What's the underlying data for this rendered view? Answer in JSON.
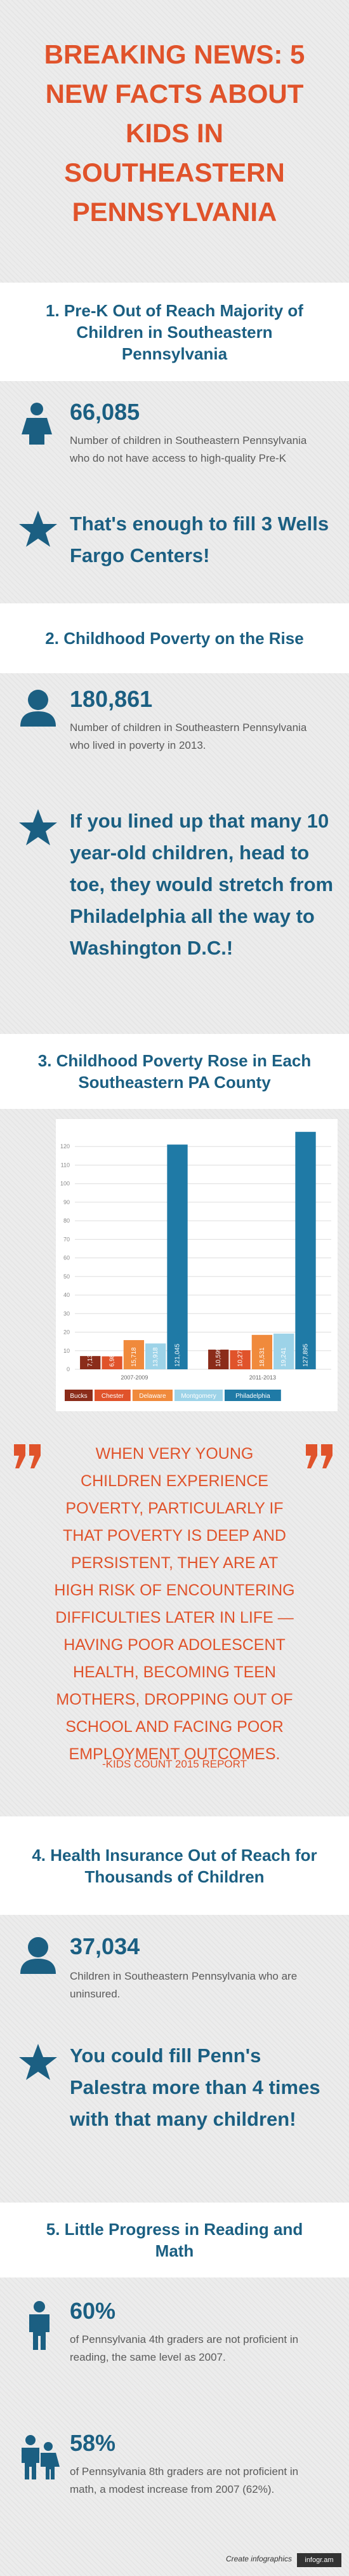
{
  "title": "BREAKING NEWS: 5 NEW FACTS ABOUT KIDS IN SOUTHEASTERN PENNSYLVANIA",
  "sections": [
    {
      "heading": "1. Pre-K Out of Reach Majority of Children in Southeastern Pennsylvania",
      "stat": "66,085",
      "stat_text": "Number of children in Southeastern Pennsylvania who do not have access to high-quality Pre-K",
      "highlight": "That's enough to fill 3 Wells Fargo Centers!"
    },
    {
      "heading": "2. Childhood Poverty on the Rise",
      "stat": "180,861",
      "stat_text": "Number of children in Southeastern Pennsylvania who lived in poverty in 2013.",
      "highlight": "If you lined up that many 10 year-old children, head to toe, they would stretch from Philadelphia all the way to Washington D.C.!"
    },
    {
      "heading": "3. Childhood Poverty Rose in Each Southeastern PA County"
    },
    {
      "heading": "4. Health Insurance Out of Reach for Thousands of Children",
      "stat": "37,034",
      "stat_text": "Children in Southeastern Pennsylvania who are uninsured.",
      "highlight": "You could fill Penn's Palestra more than 4 times with that many children!"
    },
    {
      "heading": "5. Little Progress in Reading and Math",
      "facts": [
        {
          "stat": "60%",
          "text": "of Pennsylvania 4th graders are not proficient in reading, the same level as 2007."
        },
        {
          "stat": "58%",
          "text": "of Pennsylvania 8th graders are not proficient in math, a modest increase from 2007 (62%)."
        }
      ]
    }
  ],
  "chart_data": {
    "type": "bar",
    "categories": [
      "2007-2009",
      "2011-2013"
    ],
    "series": [
      {
        "name": "Bucks",
        "color": "#8b2c1a",
        "values": [
          7.139,
          10.599
        ],
        "value_labels": [
          "7,139",
          "10,599"
        ]
      },
      {
        "name": "Chester",
        "color": "#e0532b",
        "values": [
          6.981,
          10.272
        ],
        "value_labels": [
          "6,981",
          "10,272"
        ]
      },
      {
        "name": "Delaware",
        "color": "#f08a3c",
        "values": [
          15.718,
          18.531
        ],
        "value_labels": [
          "15,718",
          "18,531"
        ]
      },
      {
        "name": "Montgomery",
        "color": "#9dd3e8",
        "values": [
          13.918,
          19.241
        ],
        "value_labels": [
          "13,918",
          "19,241"
        ]
      },
      {
        "name": "Philadelphia",
        "color": "#1f7aa6",
        "values": [
          121.045,
          127.895
        ],
        "value_labels": [
          "121,045",
          "127,895"
        ]
      }
    ],
    "ylim": [
      0,
      130
    ],
    "yticks": [
      0,
      10,
      20,
      30,
      40,
      50,
      60,
      70,
      80,
      90,
      100,
      110,
      120
    ],
    "grid": true
  },
  "quote": {
    "text": "WHEN VERY YOUNG CHILDREN EXPERIENCE POVERTY, PARTICULARLY IF THAT POVERTY IS DEEP AND PERSISTENT, THEY ARE AT HIGH RISK OF ENCOUNTERING DIFFICULTIES LATER IN LIFE — HAVING POOR ADOLESCENT HEALTH, BECOMING TEEN MOTHERS, DROPPING OUT OF SCHOOL AND FACING POOR EMPLOYMENT OUTCOMES.",
    "source": "-KIDS COUNT 2015 REPORT"
  },
  "footer": {
    "text": "Create infographics",
    "brand": "infogr.am"
  }
}
